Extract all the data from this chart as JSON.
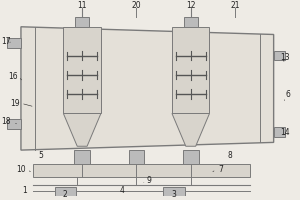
{
  "bg_color": "#eeebe5",
  "line_color": "#7a7a7a",
  "fill_color": "#d8d4cc",
  "fill_light": "#e4e0d8",
  "dark_line": "#555555",
  "label_color": "#222222",
  "label_fontsize": 5.5
}
